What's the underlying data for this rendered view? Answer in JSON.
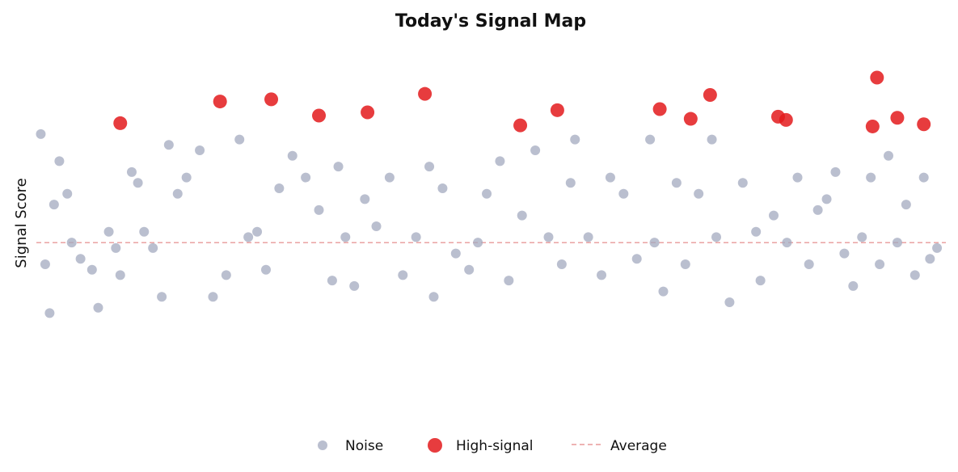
{
  "colors": {
    "noise": "#a3aabf",
    "high_signal": "#e31a1c",
    "average_line": "#e89a9a"
  },
  "chart_data": {
    "type": "scatter",
    "title": "Today's Signal Map",
    "xlabel": "",
    "ylabel": "Signal Score",
    "xlim": [
      0,
      103
    ],
    "ylim": [
      -1.6,
      1.9
    ],
    "grid": false,
    "legend_position": "bottom",
    "average": 0.0,
    "legend": [
      "Noise",
      "High-signal",
      "Average"
    ],
    "series": [
      {
        "name": "Noise",
        "points": [
          [
            0.5,
            1.0
          ],
          [
            1.5,
            -0.65
          ],
          [
            2.6,
            0.75
          ],
          [
            1.0,
            -0.2
          ],
          [
            3.5,
            0.45
          ],
          [
            2.0,
            0.35
          ],
          [
            4.0,
            0.0
          ],
          [
            5.0,
            -0.15
          ],
          [
            6.3,
            -0.25
          ],
          [
            7.0,
            -0.6
          ],
          [
            8.2,
            0.1
          ],
          [
            9.0,
            -0.05
          ],
          [
            9.5,
            -0.3
          ],
          [
            10.8,
            0.65
          ],
          [
            11.5,
            0.55
          ],
          [
            12.2,
            0.1
          ],
          [
            13.2,
            -0.05
          ],
          [
            14.2,
            -0.5
          ],
          [
            15.0,
            0.9
          ],
          [
            16.0,
            0.45
          ],
          [
            17.0,
            0.6
          ],
          [
            18.5,
            0.85
          ],
          [
            20.0,
            -0.5
          ],
          [
            21.5,
            -0.3
          ],
          [
            23.0,
            0.95
          ],
          [
            24.0,
            0.05
          ],
          [
            25.0,
            0.1
          ],
          [
            26.0,
            -0.25
          ],
          [
            27.5,
            0.5
          ],
          [
            29.0,
            0.8
          ],
          [
            30.5,
            0.6
          ],
          [
            32.0,
            0.3
          ],
          [
            33.5,
            -0.35
          ],
          [
            34.2,
            0.7
          ],
          [
            35.0,
            0.05
          ],
          [
            36.0,
            -0.4
          ],
          [
            37.2,
            0.4
          ],
          [
            38.5,
            0.15
          ],
          [
            40.0,
            0.6
          ],
          [
            41.5,
            -0.3
          ],
          [
            43.0,
            0.05
          ],
          [
            44.5,
            0.7
          ],
          [
            45.0,
            -0.5
          ],
          [
            46.0,
            0.5
          ],
          [
            47.5,
            -0.1
          ],
          [
            49.0,
            -0.25
          ],
          [
            50.0,
            0.0
          ],
          [
            51.0,
            0.45
          ],
          [
            52.5,
            0.75
          ],
          [
            53.5,
            -0.35
          ],
          [
            55.0,
            0.25
          ],
          [
            56.5,
            0.85
          ],
          [
            58.0,
            0.05
          ],
          [
            59.5,
            -0.2
          ],
          [
            60.5,
            0.55
          ],
          [
            61.0,
            0.95
          ],
          [
            62.5,
            0.05
          ],
          [
            64.0,
            -0.3
          ],
          [
            65.0,
            0.6
          ],
          [
            66.5,
            0.45
          ],
          [
            68.0,
            -0.15
          ],
          [
            69.5,
            0.95
          ],
          [
            70.0,
            0.0
          ],
          [
            71.0,
            -0.45
          ],
          [
            72.5,
            0.55
          ],
          [
            73.5,
            -0.2
          ],
          [
            75.0,
            0.45
          ],
          [
            76.5,
            0.95
          ],
          [
            77.0,
            0.05
          ],
          [
            78.5,
            -0.55
          ],
          [
            80.0,
            0.55
          ],
          [
            81.5,
            0.1
          ],
          [
            82.0,
            -0.35
          ],
          [
            83.5,
            0.25
          ],
          [
            85.0,
            0.0
          ],
          [
            86.2,
            0.6
          ],
          [
            87.5,
            -0.2
          ],
          [
            88.5,
            0.3
          ],
          [
            89.5,
            0.4
          ],
          [
            90.5,
            0.65
          ],
          [
            91.5,
            -0.1
          ],
          [
            92.5,
            -0.4
          ],
          [
            93.5,
            0.05
          ],
          [
            94.5,
            0.6
          ],
          [
            95.5,
            -0.2
          ],
          [
            96.5,
            0.8
          ],
          [
            97.5,
            0.0
          ],
          [
            98.5,
            0.35
          ],
          [
            99.5,
            -0.3
          ],
          [
            100.5,
            0.6
          ],
          [
            101.2,
            -0.15
          ],
          [
            102.0,
            -0.05
          ]
        ]
      },
      {
        "name": "High-signal",
        "points": [
          [
            9.5,
            1.1
          ],
          [
            20.8,
            1.3
          ],
          [
            26.6,
            1.32
          ],
          [
            32.0,
            1.17
          ],
          [
            37.5,
            1.2
          ],
          [
            44.0,
            1.37
          ],
          [
            54.8,
            1.08
          ],
          [
            59.0,
            1.22
          ],
          [
            70.6,
            1.23
          ],
          [
            74.1,
            1.14
          ],
          [
            76.3,
            1.36
          ],
          [
            84.0,
            1.16
          ],
          [
            84.9,
            1.13
          ],
          [
            94.7,
            1.07
          ],
          [
            95.2,
            1.52
          ],
          [
            97.5,
            1.15
          ],
          [
            100.5,
            1.09
          ]
        ]
      }
    ]
  }
}
